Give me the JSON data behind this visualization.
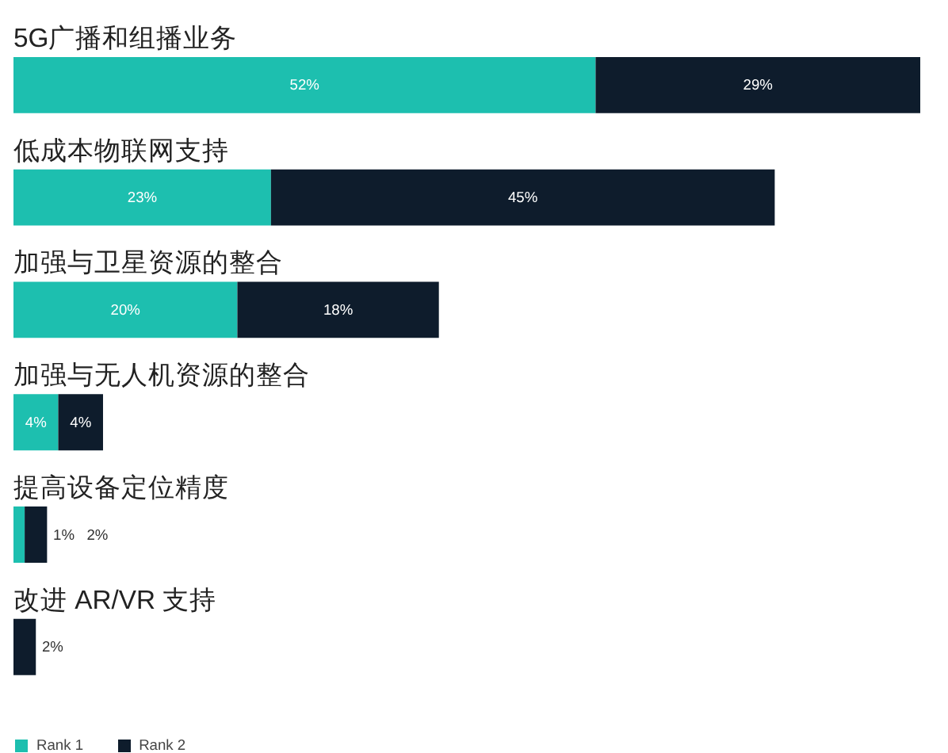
{
  "chart_data": {
    "type": "bar",
    "orientation": "horizontal",
    "stacked": true,
    "legend": "bottom left",
    "categories": [
      "5G广播和组播业务",
      "低成本物联网支持",
      "加强与卫星资源的整合",
      "加强与无人机资源的整合",
      "提高设备定位精度",
      "改进 AR/VR 支持"
    ],
    "series": [
      {
        "name": "Rank 1",
        "color": "#1dbfaf",
        "values": [
          52,
          23,
          20,
          4,
          1,
          null
        ],
        "value_labels": [
          "52%",
          "23%",
          "20%",
          "4%",
          "1%",
          null
        ]
      },
      {
        "name": "Rank 2",
        "color": "#0e1c2c",
        "values": [
          29,
          45,
          18,
          4,
          2,
          2
        ],
        "value_labels": [
          "29%",
          "45%",
          "18%",
          "4%",
          "2%",
          "2%"
        ]
      }
    ]
  }
}
